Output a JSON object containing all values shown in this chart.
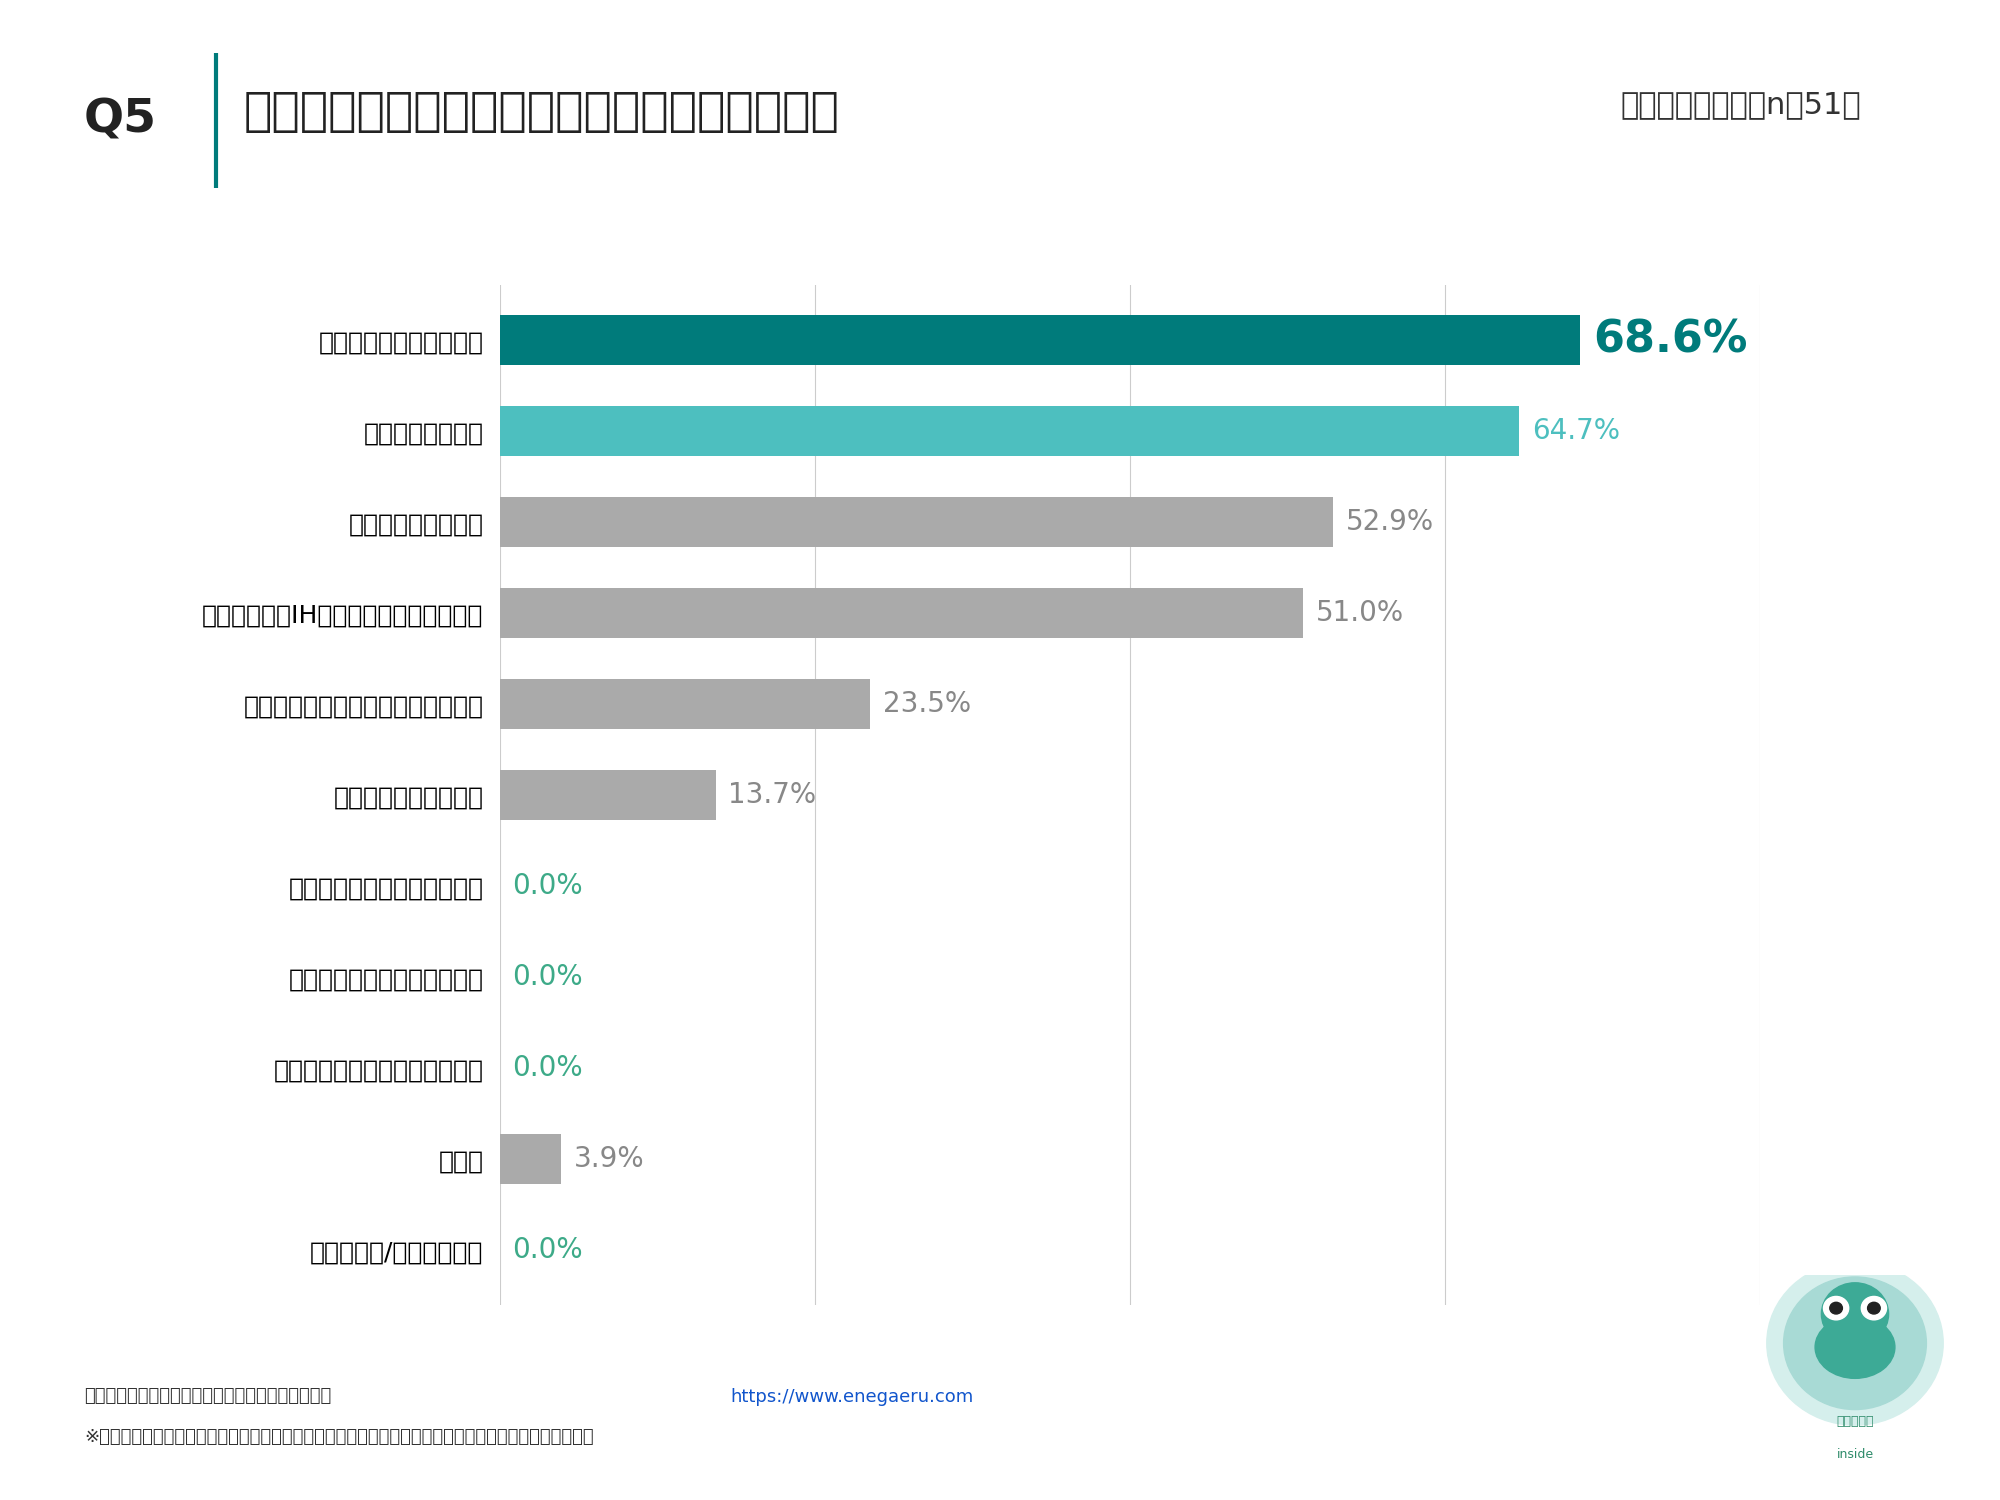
{
  "title_q": "Q5",
  "title_main": "災害時の停電でどのような事に困りましたか。",
  "title_sub": "（複数回答）　（n＝51）",
  "categories": [
    "照明がつかず部屋が暗い",
    "冷暖房が使えない",
    "冷蔵庫のものが傷む",
    "電子レンジやIHなど調理器具が使えない",
    "スマホが充電できず連絡が取れない",
    "トイレの水が流れない",
    "電気自動車の充電ができない",
    "介護用の電子設備が使えない",
    "ペット用の電子設備が使えない",
    "その他",
    "わからない/答えられない"
  ],
  "values": [
    68.6,
    64.7,
    52.9,
    51.0,
    23.5,
    13.7,
    0.0,
    0.0,
    0.0,
    3.9,
    0.0
  ],
  "bar_colors": [
    "#007B7B",
    "#4DBFBF",
    "#AAAAAA",
    "#AAAAAA",
    "#AAAAAA",
    "#AAAAAA",
    "#AAAAAA",
    "#AAAAAA",
    "#AAAAAA",
    "#AAAAAA",
    "#AAAAAA"
  ],
  "label_colors": [
    "#007B7B",
    "#4DBFBF",
    "#888888",
    "#888888",
    "#888888",
    "#888888",
    "#3DAA88",
    "#3DAA88",
    "#3DAA88",
    "#888888",
    "#3DAA88"
  ],
  "value_fontsize_first": 32,
  "value_fontsize_others": 20,
  "background_color": "#FFFFFF",
  "footer_text1": "エネがえる運営事務局調べ（国際航業株式会社）　",
  "footer_url": "https://www.enegaeru.com",
  "footer_text2": "※データやグラフにつきましては、出典先・リンクを明記いただき、ご自由に社内外でご活用ください。",
  "teal_line_color": "#007B7B",
  "xlim": [
    0,
    80
  ],
  "bar_height": 0.55,
  "logo_text1": "エネがえる",
  "logo_text2": "inside"
}
